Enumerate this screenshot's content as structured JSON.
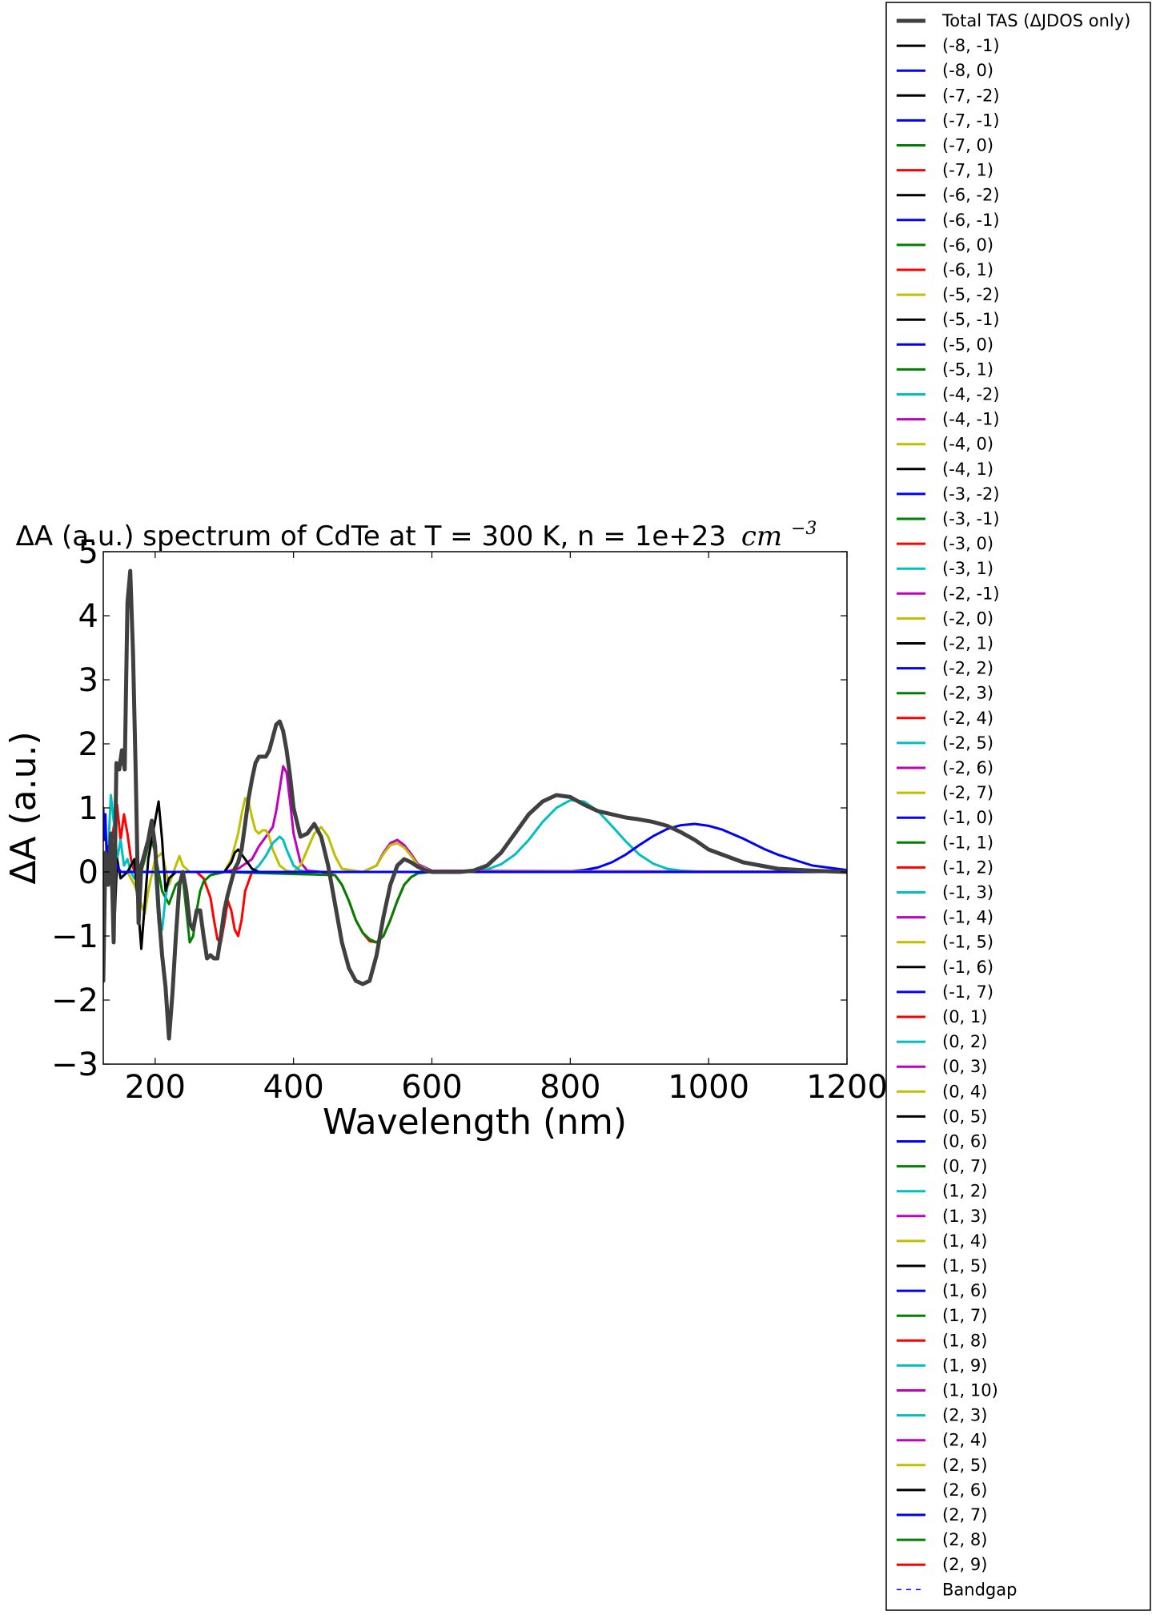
{
  "chart_data": {
    "type": "line",
    "title": "ΔA (a.u.) spectrum of CdTe at T = 300 K, n = 1e+23",
    "title_unit": "cm",
    "title_unit_exponent": "−3",
    "xlabel": "Wavelength (nm)",
    "ylabel": "ΔA (a.u.)",
    "xlim": [
      125,
      1200
    ],
    "ylim": [
      -3,
      5
    ],
    "xticks": [
      "200",
      "400",
      "600",
      "800",
      "1000",
      "1200"
    ],
    "xtick_values": [
      200,
      400,
      600,
      800,
      1000,
      1200
    ],
    "yticks": [
      "−3",
      "−2",
      "−1",
      "0",
      "1",
      "2",
      "3",
      "4",
      "5"
    ],
    "ytick_values": [
      -3,
      -2,
      -1,
      0,
      1,
      2,
      3,
      4,
      5
    ],
    "grid": false,
    "legend_placement": "outside-right",
    "legend": [
      {
        "label": "Total TAS (ΔJDOS only)",
        "color": "#404040",
        "style": "thick"
      },
      {
        "label": "(-8, -1)",
        "color": "#000000"
      },
      {
        "label": "(-8, 0)",
        "color": "#0000ff"
      },
      {
        "label": "(-7, -2)",
        "color": "#000000"
      },
      {
        "label": "(-7, -1)",
        "color": "#0000ff"
      },
      {
        "label": "(-7, 0)",
        "color": "#008000"
      },
      {
        "label": "(-7, 1)",
        "color": "#ff0000"
      },
      {
        "label": "(-6, -2)",
        "color": "#000000"
      },
      {
        "label": "(-6, -1)",
        "color": "#0000ff"
      },
      {
        "label": "(-6, 0)",
        "color": "#008000"
      },
      {
        "label": "(-6, 1)",
        "color": "#ff0000"
      },
      {
        "label": "(-5, -2)",
        "color": "#bfbf00"
      },
      {
        "label": "(-5, -1)",
        "color": "#000000"
      },
      {
        "label": "(-5, 0)",
        "color": "#0000ff"
      },
      {
        "label": "(-5, 1)",
        "color": "#008000"
      },
      {
        "label": "(-4, -2)",
        "color": "#00bfbf"
      },
      {
        "label": "(-4, -1)",
        "color": "#bf00bf"
      },
      {
        "label": "(-4, 0)",
        "color": "#bfbf00"
      },
      {
        "label": "(-4, 1)",
        "color": "#000000"
      },
      {
        "label": "(-3, -2)",
        "color": "#0000ff"
      },
      {
        "label": "(-3, -1)",
        "color": "#008000"
      },
      {
        "label": "(-3, 0)",
        "color": "#ff0000"
      },
      {
        "label": "(-3, 1)",
        "color": "#00bfbf"
      },
      {
        "label": "(-2, -1)",
        "color": "#bf00bf"
      },
      {
        "label": "(-2, 0)",
        "color": "#bfbf00"
      },
      {
        "label": "(-2, 1)",
        "color": "#000000"
      },
      {
        "label": "(-2, 2)",
        "color": "#0000ff"
      },
      {
        "label": "(-2, 3)",
        "color": "#008000"
      },
      {
        "label": "(-2, 4)",
        "color": "#ff0000"
      },
      {
        "label": "(-2, 5)",
        "color": "#00bfbf"
      },
      {
        "label": "(-2, 6)",
        "color": "#bf00bf"
      },
      {
        "label": "(-2, 7)",
        "color": "#bfbf00"
      },
      {
        "label": "(-1, 0)",
        "color": "#0000ff"
      },
      {
        "label": "(-1, 1)",
        "color": "#008000"
      },
      {
        "label": "(-1, 2)",
        "color": "#ff0000"
      },
      {
        "label": "(-1, 3)",
        "color": "#00bfbf"
      },
      {
        "label": "(-1, 4)",
        "color": "#bf00bf"
      },
      {
        "label": "(-1, 5)",
        "color": "#bfbf00"
      },
      {
        "label": "(-1, 6)",
        "color": "#000000"
      },
      {
        "label": "(-1, 7)",
        "color": "#0000ff"
      },
      {
        "label": "(0, 1)",
        "color": "#ff0000"
      },
      {
        "label": "(0, 2)",
        "color": "#00bfbf"
      },
      {
        "label": "(0, 3)",
        "color": "#bf00bf"
      },
      {
        "label": "(0, 4)",
        "color": "#bfbf00"
      },
      {
        "label": "(0, 5)",
        "color": "#000000"
      },
      {
        "label": "(0, 6)",
        "color": "#0000ff"
      },
      {
        "label": "(0, 7)",
        "color": "#008000"
      },
      {
        "label": "(1, 2)",
        "color": "#00bfbf"
      },
      {
        "label": "(1, 3)",
        "color": "#bf00bf"
      },
      {
        "label": "(1, 4)",
        "color": "#bfbf00"
      },
      {
        "label": "(1, 5)",
        "color": "#000000"
      },
      {
        "label": "(1, 6)",
        "color": "#0000ff"
      },
      {
        "label": "(1, 7)",
        "color": "#008000"
      },
      {
        "label": "(1, 8)",
        "color": "#ff0000"
      },
      {
        "label": "(1, 9)",
        "color": "#00bfbf"
      },
      {
        "label": "(1, 10)",
        "color": "#bf00bf"
      },
      {
        "label": "(2, 3)",
        "color": "#00bfbf"
      },
      {
        "label": "(2, 4)",
        "color": "#bf00bf"
      },
      {
        "label": "(2, 5)",
        "color": "#bfbf00"
      },
      {
        "label": "(2, 6)",
        "color": "#000000"
      },
      {
        "label": "(2, 7)",
        "color": "#0000ff"
      },
      {
        "label": "(2, 8)",
        "color": "#008000"
      },
      {
        "label": "(2, 9)",
        "color": "#ff0000"
      },
      {
        "label": "Bandgap",
        "color": "#0000ff",
        "style": "dashed"
      }
    ],
    "series": [
      {
        "name": "Total TAS (ΔJDOS only)",
        "color": "#404040",
        "x": [
          125,
          128,
          132,
          136,
          140,
          144,
          148,
          152,
          156,
          160,
          164,
          168,
          172,
          176,
          180,
          185,
          190,
          195,
          200,
          205,
          210,
          215,
          220,
          225,
          230,
          235,
          240,
          245,
          250,
          255,
          260,
          265,
          270,
          275,
          280,
          285,
          290,
          295,
          300,
          305,
          310,
          315,
          320,
          325,
          330,
          335,
          340,
          345,
          350,
          355,
          360,
          365,
          370,
          375,
          380,
          385,
          390,
          395,
          400,
          410,
          420,
          430,
          440,
          450,
          460,
          470,
          480,
          490,
          500,
          510,
          520,
          530,
          540,
          550,
          560,
          570,
          580,
          590,
          600,
          620,
          640,
          660,
          680,
          700,
          720,
          740,
          760,
          780,
          800,
          820,
          840,
          860,
          880,
          900,
          920,
          940,
          960,
          980,
          1000,
          1050,
          1100,
          1150,
          1200
        ],
        "y": [
          -1.7,
          0.3,
          -0.2,
          0.6,
          -1.1,
          1.7,
          1.6,
          1.9,
          1.6,
          4.2,
          4.7,
          3.4,
          1.5,
          -0.8,
          0.1,
          0.3,
          0.5,
          0.8,
          0.4,
          -0.6,
          -1.3,
          -1.8,
          -2.6,
          -1.9,
          -1.0,
          -0.2,
          0.0,
          -0.3,
          -0.8,
          -0.9,
          -0.6,
          -0.6,
          -1.0,
          -1.35,
          -1.3,
          -1.35,
          -1.35,
          -1.0,
          -0.6,
          -0.35,
          -0.15,
          0.05,
          0.15,
          0.35,
          0.75,
          1.15,
          1.45,
          1.7,
          1.8,
          1.8,
          1.8,
          1.9,
          2.1,
          2.3,
          2.35,
          2.2,
          1.9,
          1.5,
          1.0,
          0.55,
          0.6,
          0.75,
          0.55,
          0.1,
          -0.5,
          -1.1,
          -1.5,
          -1.7,
          -1.75,
          -1.7,
          -1.3,
          -0.7,
          -0.2,
          0.1,
          0.2,
          0.15,
          0.08,
          0.03,
          0.0,
          0.0,
          0.0,
          0.02,
          0.1,
          0.3,
          0.6,
          0.9,
          1.1,
          1.2,
          1.17,
          1.05,
          0.95,
          0.9,
          0.85,
          0.82,
          0.78,
          0.72,
          0.62,
          0.5,
          0.35,
          0.15,
          0.05,
          0.02,
          0.0
        ]
      },
      {
        "name": "(-1, 3)",
        "color": "#00bfbf",
        "x": [
          640,
          660,
          680,
          700,
          720,
          740,
          760,
          780,
          800,
          820,
          840,
          860,
          880,
          900,
          920,
          940,
          960,
          980,
          1000,
          1050,
          1100
        ],
        "y": [
          0.0,
          0.01,
          0.04,
          0.12,
          0.27,
          0.5,
          0.78,
          1.0,
          1.12,
          1.1,
          0.95,
          0.72,
          0.48,
          0.27,
          0.13,
          0.05,
          0.02,
          0.01,
          0.0,
          0.0,
          0.0
        ]
      },
      {
        "name": "(-1, 0)",
        "color": "#0000ff",
        "x": [
          760,
          780,
          800,
          820,
          840,
          860,
          880,
          900,
          920,
          940,
          960,
          980,
          1000,
          1020,
          1050,
          1080,
          1100,
          1150,
          1200
        ],
        "y": [
          0.0,
          0.0,
          0.01,
          0.03,
          0.07,
          0.15,
          0.27,
          0.42,
          0.56,
          0.67,
          0.73,
          0.75,
          0.72,
          0.66,
          0.52,
          0.36,
          0.27,
          0.1,
          0.03
        ]
      },
      {
        "name": "(-2, 4)",
        "color": "#ff0000",
        "x": [
          125,
          135,
          140,
          145,
          150,
          155,
          160,
          165,
          170,
          175,
          180,
          190,
          200,
          220,
          240,
          260,
          270,
          280,
          285,
          290,
          295,
          300,
          305,
          310,
          315,
          320,
          325,
          330,
          340,
          360,
          380,
          400,
          420,
          440,
          460,
          470,
          480,
          490,
          500,
          510,
          520,
          530,
          540,
          550,
          560,
          570,
          580,
          590,
          600,
          620,
          700,
          1200
        ],
        "y": [
          0.0,
          0.3,
          0.7,
          1.05,
          0.5,
          0.9,
          0.6,
          0.2,
          0.0,
          0.0,
          0.0,
          0.0,
          0.0,
          0.0,
          0.0,
          0.0,
          -0.1,
          -0.4,
          -0.75,
          -1.05,
          -1.1,
          -0.8,
          -0.45,
          -0.6,
          -0.9,
          -1.0,
          -0.75,
          -0.3,
          0.0,
          0.0,
          0.0,
          0.0,
          0.0,
          0.0,
          -0.05,
          -0.2,
          -0.45,
          -0.75,
          -0.95,
          -1.08,
          -1.1,
          -1.0,
          -0.75,
          -0.45,
          -0.2,
          -0.08,
          -0.02,
          0.0,
          0.0,
          0.0,
          0.0,
          0.0
        ]
      },
      {
        "name": "(-2, 3)",
        "color": "#008000",
        "x": [
          125,
          180,
          185,
          190,
          195,
          200,
          205,
          210,
          215,
          220,
          230,
          240,
          245,
          250,
          255,
          260,
          265,
          270,
          280,
          300,
          460,
          470,
          480,
          490,
          500,
          510,
          520,
          530,
          540,
          550,
          560,
          570,
          580,
          600,
          1200
        ],
        "y": [
          0.0,
          0.0,
          0.2,
          0.4,
          0.5,
          0.3,
          0.0,
          -0.3,
          -0.4,
          -0.5,
          -0.2,
          -0.1,
          -0.6,
          -1.1,
          -1.0,
          -0.6,
          -0.3,
          -0.15,
          -0.05,
          0.0,
          -0.05,
          -0.2,
          -0.45,
          -0.75,
          -0.95,
          -1.05,
          -1.1,
          -1.0,
          -0.75,
          -0.45,
          -0.2,
          -0.08,
          -0.02,
          0.0,
          0.0
        ]
      },
      {
        "name": "(-4, -1)",
        "color": "#bf00bf",
        "x": [
          125,
          300,
          320,
          340,
          350,
          360,
          370,
          375,
          380,
          385,
          390,
          395,
          400,
          410,
          420,
          440,
          460,
          500,
          520,
          530,
          540,
          550,
          560,
          570,
          580,
          600,
          1200
        ],
        "y": [
          0.0,
          0.0,
          0.05,
          0.2,
          0.4,
          0.55,
          0.7,
          0.95,
          1.3,
          1.65,
          1.55,
          1.1,
          0.6,
          0.15,
          0.02,
          0.0,
          0.0,
          0.0,
          0.1,
          0.3,
          0.45,
          0.5,
          0.42,
          0.28,
          0.12,
          0.02,
          0.0
        ]
      },
      {
        "name": "(-4, 0)",
        "color": "#bfbf00",
        "x": [
          125,
          160,
          170,
          180,
          185,
          190,
          200,
          210,
          220,
          230,
          235,
          240,
          250,
          300,
          310,
          320,
          325,
          330,
          335,
          340,
          345,
          350,
          355,
          360,
          365,
          370,
          380,
          390,
          400,
          410,
          420,
          430,
          440,
          450,
          460,
          470,
          500,
          520,
          530,
          540,
          550,
          560,
          570,
          580,
          600,
          1200
        ],
        "y": [
          0.0,
          0.0,
          -0.2,
          -0.5,
          -0.65,
          -0.3,
          0.2,
          0.3,
          -0.2,
          0.1,
          0.25,
          0.1,
          0.0,
          0.0,
          0.2,
          0.6,
          0.9,
          1.15,
          1.1,
          0.85,
          0.65,
          0.6,
          0.65,
          0.65,
          0.55,
          0.35,
          0.1,
          0.02,
          0.0,
          0.1,
          0.35,
          0.6,
          0.7,
          0.55,
          0.25,
          0.05,
          0.0,
          0.1,
          0.28,
          0.42,
          0.45,
          0.38,
          0.25,
          0.1,
          0.01,
          0.0
        ]
      },
      {
        "name": "(-4, -2)",
        "color": "#00bfbf",
        "x": [
          125,
          128,
          132,
          136,
          140,
          145,
          150,
          155,
          160,
          165,
          170,
          180,
          200,
          205,
          210,
          215,
          220,
          230,
          240,
          340,
          350,
          360,
          370,
          380,
          385,
          390,
          400,
          410,
          420,
          1200
        ],
        "y": [
          -0.5,
          0.1,
          0.3,
          1.2,
          0.8,
          0.2,
          0.5,
          0.1,
          0.2,
          0.0,
          -0.1,
          0.0,
          0.0,
          -0.8,
          -0.9,
          -0.4,
          -0.1,
          0.0,
          0.0,
          0.0,
          0.1,
          0.25,
          0.45,
          0.55,
          0.5,
          0.35,
          0.1,
          0.02,
          0.0,
          0.0
        ]
      },
      {
        "name": "(-4, 1)",
        "color": "#000000",
        "x": [
          125,
          135,
          140,
          145,
          150,
          160,
          170,
          180,
          190,
          200,
          205,
          210,
          215,
          220,
          230,
          240,
          300,
          310,
          315,
          320,
          330,
          340,
          350,
          1200
        ],
        "y": [
          0.0,
          0.3,
          -1.1,
          0.2,
          -0.1,
          0.0,
          0.2,
          -1.2,
          0.2,
          0.8,
          1.1,
          0.5,
          -0.3,
          -0.1,
          0.0,
          0.0,
          0.0,
          0.15,
          0.3,
          0.35,
          0.2,
          0.05,
          0.0,
          0.0
        ]
      },
      {
        "name": "(-8, 0)",
        "color": "#0000ff",
        "x": [
          125,
          126,
          128,
          130,
          132,
          134,
          136,
          140,
          145,
          150,
          160,
          1200
        ],
        "y": [
          1.0,
          0.5,
          0.9,
          0.2,
          0.4,
          0.1,
          -0.1,
          0.2,
          0.1,
          0.0,
          0.0,
          0.0
        ]
      }
    ]
  }
}
